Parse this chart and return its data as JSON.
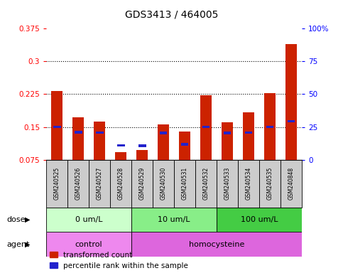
{
  "title": "GDS3413 / 464005",
  "samples": [
    "GSM240525",
    "GSM240526",
    "GSM240527",
    "GSM240528",
    "GSM240529",
    "GSM240530",
    "GSM240531",
    "GSM240532",
    "GSM240533",
    "GSM240534",
    "GSM240535",
    "GSM240848"
  ],
  "red_values": [
    0.232,
    0.172,
    0.163,
    0.093,
    0.098,
    0.155,
    0.14,
    0.222,
    0.16,
    0.183,
    0.228,
    0.34
  ],
  "blue_values": [
    0.15,
    0.138,
    0.137,
    0.108,
    0.107,
    0.136,
    0.11,
    0.15,
    0.136,
    0.137,
    0.15,
    0.163
  ],
  "ylim": [
    0.075,
    0.375
  ],
  "yticks_left": [
    0.075,
    0.15,
    0.225,
    0.3,
    0.375
  ],
  "yticks_right": [
    0,
    25,
    50,
    75,
    100
  ],
  "dose_groups": [
    {
      "label": "0 um/L",
      "start": 0,
      "end": 4,
      "color": "#ccffcc"
    },
    {
      "label": "10 um/L",
      "start": 4,
      "end": 8,
      "color": "#88ee88"
    },
    {
      "label": "100 um/L",
      "start": 8,
      "end": 12,
      "color": "#44cc44"
    }
  ],
  "agent_groups": [
    {
      "label": "control",
      "start": 0,
      "end": 4,
      "color": "#ee88ee"
    },
    {
      "label": "homocysteine",
      "start": 4,
      "end": 12,
      "color": "#dd66dd"
    }
  ],
  "red_color": "#cc2200",
  "blue_color": "#2222cc",
  "label_bg_color": "#cccccc",
  "legend_red": "transformed count",
  "legend_blue": "percentile rank within the sample"
}
